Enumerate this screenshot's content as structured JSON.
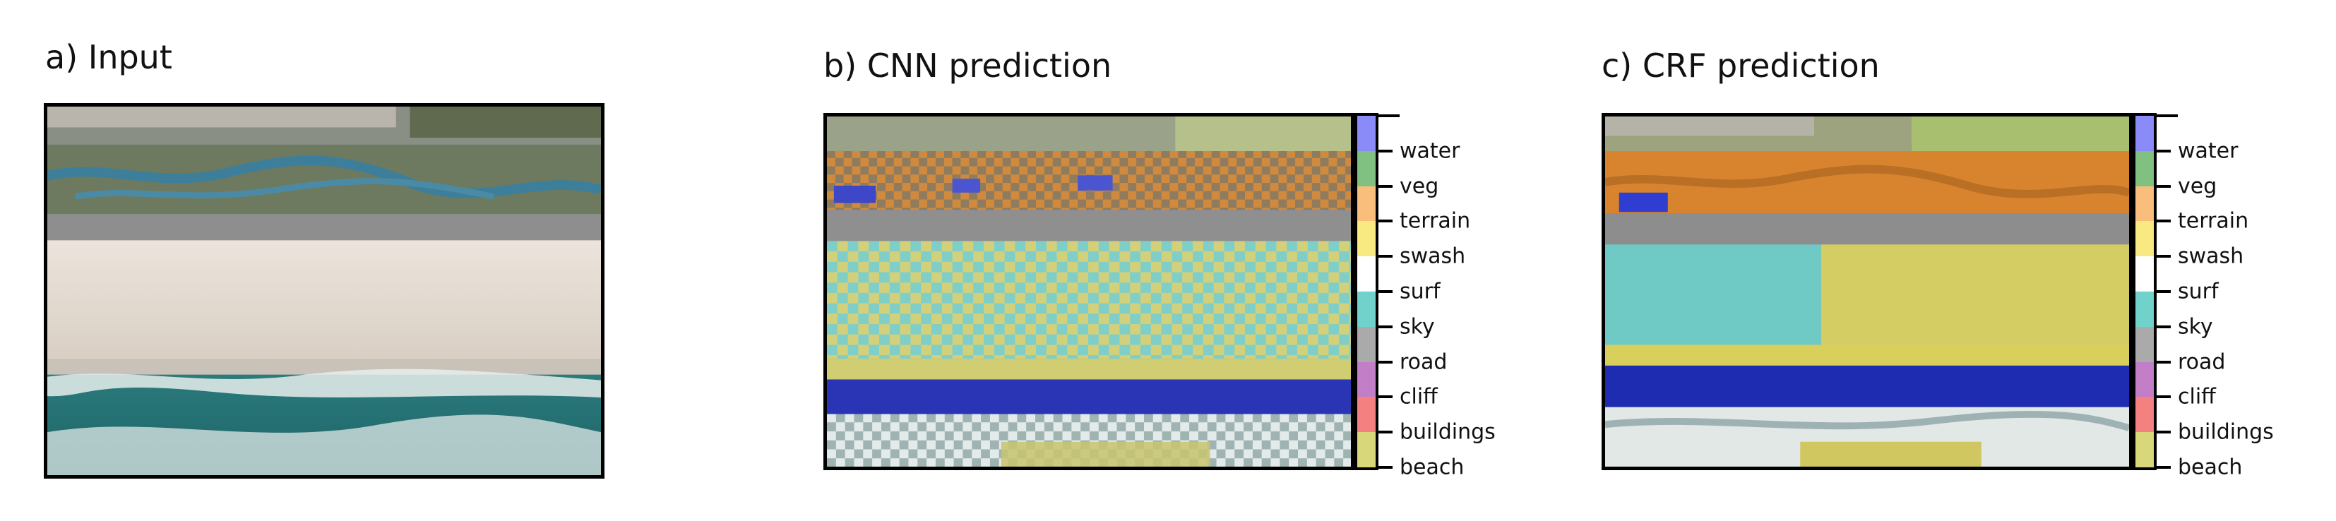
{
  "panels": {
    "input": {
      "title": "a) Input"
    },
    "cnn": {
      "title": "b) CNN prediction"
    },
    "crf": {
      "title": "c) CRF prediction"
    }
  },
  "chart_data": {
    "type": "heatmap",
    "colorbar": {
      "classes": [
        "water",
        "veg",
        "terrain",
        "swash",
        "surf",
        "sky",
        "road",
        "cliff",
        "buildings",
        "beach"
      ],
      "colors": [
        "#8a8af8",
        "#80c080",
        "#f9be7c",
        "#f8ea80",
        "#ffffff",
        "#70d2ca",
        "#aaaaaa",
        "#c27fc8",
        "#f58080",
        "#d8d87a"
      ]
    }
  }
}
